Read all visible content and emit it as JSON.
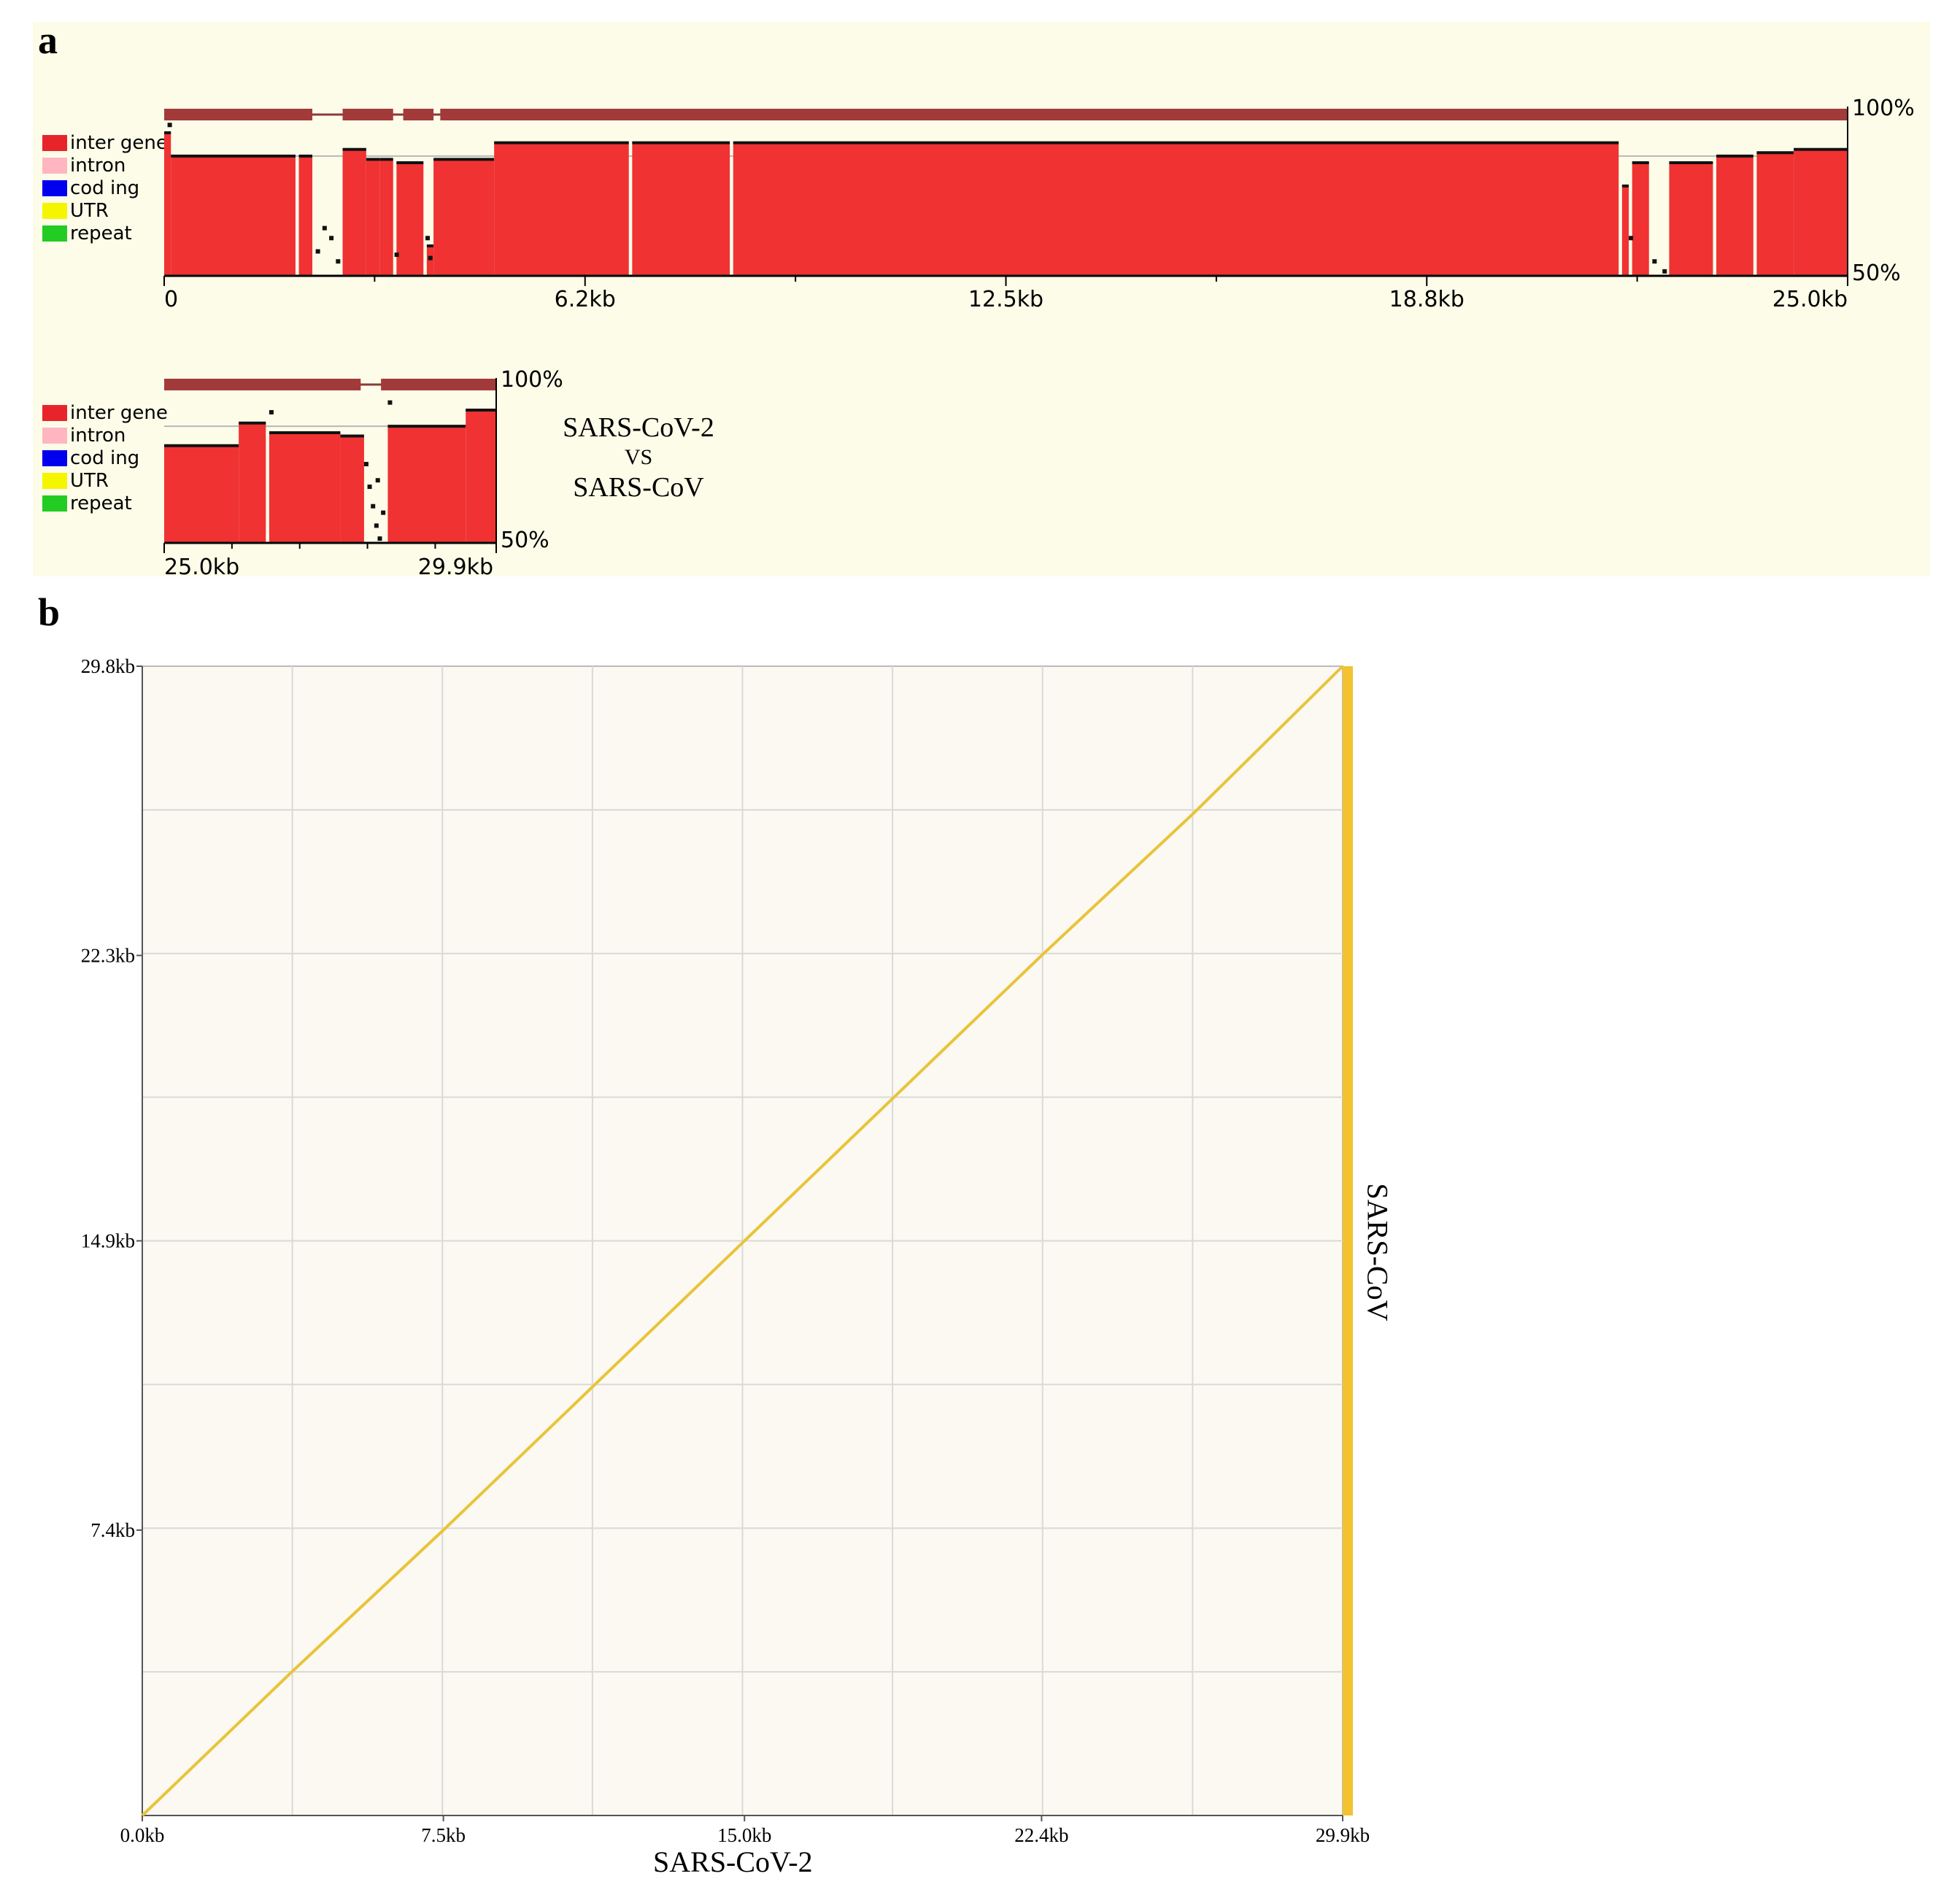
{
  "panels": {
    "a_label": "a",
    "b_label": "b"
  },
  "legend": [
    {
      "label": "inter gene",
      "color": "#e8242b"
    },
    {
      "label": "intron",
      "color": "#ffb6c1"
    },
    {
      "label": "cod ing",
      "color": "#0000ee"
    },
    {
      "label": "UTR",
      "color": "#f5f500"
    },
    {
      "label": "repeat",
      "color": "#22cc22"
    }
  ],
  "comparison": {
    "line1": "SARS-CoV-2",
    "line2": "VS",
    "line3": "SARS-CoV"
  },
  "chart_data": [
    {
      "type": "area",
      "name": "vista_row1",
      "x_range_kb": [
        0,
        25.0
      ],
      "y_range_pct": [
        50,
        100
      ],
      "x_tick_labels": [
        "0",
        "6.2kb",
        "12.5kb",
        "18.8kb",
        "25.0kb"
      ],
      "y_tick_labels": [
        "100%",
        "50%"
      ],
      "fill_color": "#f03232",
      "alignment_blocks_kb": [
        [
          0,
          2.2
        ],
        [
          2.65,
          3.4
        ],
        [
          3.55,
          4.0
        ],
        [
          4.1,
          25.0
        ]
      ],
      "conserved_regions": [
        {
          "start_kb": 0.0,
          "end_kb": 0.1,
          "identity": 93
        },
        {
          "start_kb": 0.1,
          "end_kb": 1.95,
          "identity": 86
        },
        {
          "start_kb": 2.0,
          "end_kb": 2.2,
          "identity": 86
        },
        {
          "start_kb": 2.65,
          "end_kb": 3.0,
          "identity": 88
        },
        {
          "start_kb": 3.0,
          "end_kb": 3.2,
          "identity": 85
        },
        {
          "start_kb": 3.2,
          "end_kb": 3.4,
          "identity": 85
        },
        {
          "start_kb": 3.45,
          "end_kb": 3.85,
          "identity": 84
        },
        {
          "start_kb": 3.9,
          "end_kb": 4.0,
          "identity": 59
        },
        {
          "start_kb": 4.0,
          "end_kb": 4.9,
          "identity": 85
        },
        {
          "start_kb": 4.9,
          "end_kb": 6.9,
          "identity": 90
        },
        {
          "start_kb": 6.95,
          "end_kb": 8.4,
          "identity": 90
        },
        {
          "start_kb": 8.45,
          "end_kb": 21.6,
          "identity": 90
        },
        {
          "start_kb": 21.65,
          "end_kb": 21.75,
          "identity": 77
        },
        {
          "start_kb": 21.8,
          "end_kb": 22.05,
          "identity": 84
        },
        {
          "start_kb": 22.35,
          "end_kb": 23.0,
          "identity": 84
        },
        {
          "start_kb": 23.05,
          "end_kb": 23.6,
          "identity": 86
        },
        {
          "start_kb": 23.65,
          "end_kb": 24.2,
          "identity": 87
        },
        {
          "start_kb": 24.2,
          "end_kb": 25.0,
          "identity": 88
        }
      ]
    },
    {
      "type": "area",
      "name": "vista_row2",
      "x_range_kb": [
        25.0,
        29.9
      ],
      "y_range_pct": [
        50,
        100
      ],
      "x_tick_labels": [
        "25.0kb",
        "29.9kb"
      ],
      "y_tick_labels": [
        "100%",
        "50%"
      ],
      "fill_color": "#f03232",
      "alignment_blocks_kb": [
        [
          25.0,
          27.9
        ],
        [
          28.2,
          29.9
        ]
      ],
      "conserved_regions": [
        {
          "start_kb": 25.0,
          "end_kb": 26.1,
          "identity": 80
        },
        {
          "start_kb": 26.1,
          "end_kb": 26.5,
          "identity": 87
        },
        {
          "start_kb": 26.55,
          "end_kb": 27.6,
          "identity": 84
        },
        {
          "start_kb": 27.6,
          "end_kb": 27.95,
          "identity": 83
        },
        {
          "start_kb": 28.3,
          "end_kb": 29.45,
          "identity": 86
        },
        {
          "start_kb": 29.45,
          "end_kb": 29.9,
          "identity": 91
        }
      ]
    },
    {
      "type": "line",
      "name": "dot_plot",
      "xlabel": "SARS-CoV-2",
      "ylabel": "SARS-CoV",
      "x_tick_labels": [
        "0.0kb",
        "7.5kb",
        "15.0kb",
        "22.4kb",
        "29.9kb"
      ],
      "y_tick_labels": [
        "7.4kb",
        "14.9kb",
        "22.3kb",
        "29.8kb"
      ],
      "xlim_kb": [
        0,
        29.9
      ],
      "ylim_kb": [
        0,
        29.8
      ],
      "grid": true,
      "line_color": "#e8c43a",
      "series": [
        {
          "x": [
            0,
            3.7,
            7.5,
            11.2,
            15.0,
            18.7,
            22.4,
            26.2,
            29.9
          ],
          "y": [
            0,
            3.7,
            7.4,
            11.1,
            14.9,
            18.6,
            22.3,
            26.0,
            29.8
          ]
        }
      ]
    }
  ]
}
